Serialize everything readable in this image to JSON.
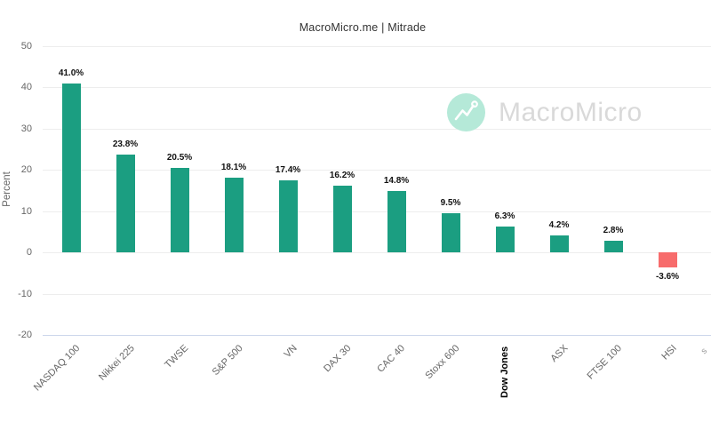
{
  "title": "MacroMicro.me | Mitrade",
  "watermark": {
    "icon": "macromicro-logo-icon",
    "text": "MacroMicro"
  },
  "chart_data": {
    "type": "bar",
    "title": "MacroMicro.me | Mitrade",
    "xlabel": "",
    "ylabel": "Percent",
    "ylim": [
      -20,
      50
    ],
    "yticks": [
      50,
      40,
      30,
      20,
      10,
      0,
      -10,
      -20
    ],
    "grid": true,
    "legend": false,
    "categories": [
      "NASDAQ 100",
      "Nikkei 225",
      "TWSE",
      "S&P 500",
      "VN",
      "DAX 30",
      "CAC 40",
      "Stoxx 600",
      "Dow Jones",
      "ASX",
      "FTSE 100",
      "HSI"
    ],
    "values": [
      41.0,
      23.8,
      20.5,
      18.1,
      17.4,
      16.2,
      14.8,
      9.5,
      6.3,
      4.2,
      2.8,
      -3.6
    ],
    "value_labels": [
      "41.0%",
      "23.8%",
      "20.5%",
      "18.1%",
      "17.4%",
      "16.2%",
      "14.8%",
      "9.5%",
      "6.3%",
      "4.2%",
      "2.8%",
      "-3.6%"
    ],
    "bar_color_positive": "#1b9e81",
    "bar_color_negative": "#f76c6c",
    "highlighted_category": "Dow Jones",
    "partial_next_label": "s"
  }
}
